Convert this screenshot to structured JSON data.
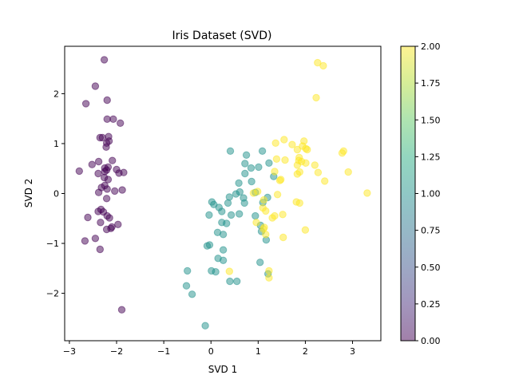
{
  "chart_data": {
    "type": "scatter",
    "title": "Iris Dataset (SVD)",
    "xlabel": "SVD 1",
    "ylabel": "SVD 2",
    "xlim": [
      -3.1,
      3.6
    ],
    "ylim": [
      -2.95,
      2.95
    ],
    "xticks": [
      -3,
      -2,
      -1,
      0,
      1,
      2,
      3
    ],
    "yticks": [
      -2,
      -1,
      0,
      1,
      2
    ],
    "grid": false,
    "marker_alpha": 0.5,
    "colorbar": {
      "colormap": "viridis",
      "range": [
        0,
        2
      ],
      "ticks": [
        "0.00",
        "0.25",
        "0.50",
        "0.75",
        "1.00",
        "1.25",
        "1.50",
        "1.75",
        "2.00"
      ]
    },
    "series": [
      {
        "class_value": 0,
        "color": "#440154",
        "points": [
          [
            -2.26,
            2.68
          ],
          [
            -2.45,
            2.15
          ],
          [
            -2.65,
            1.8
          ],
          [
            -2.2,
            1.87
          ],
          [
            -2.2,
            1.49
          ],
          [
            -2.07,
            1.49
          ],
          [
            -1.92,
            1.41
          ],
          [
            -2.35,
            1.12
          ],
          [
            -2.3,
            1.12
          ],
          [
            -2.17,
            1.14
          ],
          [
            -2.21,
            1.01
          ],
          [
            -2.16,
            1.05
          ],
          [
            -2.22,
            0.93
          ],
          [
            -2.52,
            0.58
          ],
          [
            -2.38,
            0.64
          ],
          [
            -2.09,
            0.66
          ],
          [
            -2.18,
            0.53
          ],
          [
            -2.25,
            0.51
          ],
          [
            -2.21,
            0.47
          ],
          [
            -2.25,
            0.44
          ],
          [
            -2.0,
            0.48
          ],
          [
            -1.95,
            0.41
          ],
          [
            -1.85,
            0.42
          ],
          [
            -2.79,
            0.45
          ],
          [
            -2.39,
            0.4
          ],
          [
            -2.26,
            0.32
          ],
          [
            -2.18,
            0.28
          ],
          [
            -2.25,
            0.16
          ],
          [
            -2.32,
            0.12
          ],
          [
            -2.2,
            0.09
          ],
          [
            -2.04,
            0.05
          ],
          [
            -1.88,
            0.07
          ],
          [
            -2.38,
            0.02
          ],
          [
            -2.21,
            -0.1
          ],
          [
            -2.33,
            -0.32
          ],
          [
            -2.39,
            -0.36
          ],
          [
            -2.28,
            -0.37
          ],
          [
            -2.61,
            -0.48
          ],
          [
            -2.2,
            -0.45
          ],
          [
            -2.15,
            -0.49
          ],
          [
            -2.34,
            -0.58
          ],
          [
            -2.1,
            -0.67
          ],
          [
            -1.97,
            -0.62
          ],
          [
            -2.21,
            -0.72
          ],
          [
            -2.12,
            -0.7
          ],
          [
            -2.45,
            -0.9
          ],
          [
            -2.67,
            -0.95
          ],
          [
            -2.35,
            -1.12
          ],
          [
            -1.89,
            -2.33
          ]
        ]
      },
      {
        "class_value": 1,
        "color": "#21918c",
        "points": [
          [
            0.41,
            0.85
          ],
          [
            0.75,
            0.77
          ],
          [
            1.09,
            0.85
          ],
          [
            0.72,
            0.6
          ],
          [
            0.85,
            0.51
          ],
          [
            1.01,
            0.53
          ],
          [
            1.23,
            0.61
          ],
          [
            0.72,
            0.4
          ],
          [
            1.33,
            0.34
          ],
          [
            0.59,
            0.21
          ],
          [
            0.61,
            0.03
          ],
          [
            0.86,
            0.24
          ],
          [
            0.94,
            0.02
          ],
          [
            0.53,
            -0.01
          ],
          [
            0.69,
            -0.09
          ],
          [
            0.39,
            -0.07
          ],
          [
            0.02,
            -0.17
          ],
          [
            0.06,
            -0.22
          ],
          [
            0.17,
            -0.28
          ],
          [
            0.36,
            -0.19
          ],
          [
            0.71,
            -0.19
          ],
          [
            1.1,
            -0.18
          ],
          [
            1.2,
            -0.08
          ],
          [
            0.23,
            -0.36
          ],
          [
            -0.04,
            -0.43
          ],
          [
            0.43,
            -0.43
          ],
          [
            0.6,
            -0.41
          ],
          [
            0.23,
            -0.58
          ],
          [
            0.33,
            -0.6
          ],
          [
            0.94,
            -0.45
          ],
          [
            0.14,
            -0.78
          ],
          [
            0.26,
            -0.82
          ],
          [
            1.05,
            -0.64
          ],
          [
            1.07,
            -0.76
          ],
          [
            1.17,
            -0.93
          ],
          [
            0.26,
            -1.13
          ],
          [
            -0.03,
            -1.03
          ],
          [
            -0.08,
            -1.05
          ],
          [
            0.15,
            -1.3
          ],
          [
            0.26,
            -1.34
          ],
          [
            1.04,
            -1.38
          ],
          [
            -0.5,
            -1.55
          ],
          [
            0.01,
            -1.55
          ],
          [
            0.1,
            -1.57
          ],
          [
            1.21,
            -1.61
          ],
          [
            0.4,
            -1.76
          ],
          [
            0.55,
            -1.76
          ],
          [
            -0.52,
            -1.85
          ],
          [
            -0.4,
            -2.02
          ],
          [
            -0.12,
            -2.65
          ]
        ]
      },
      {
        "class_value": 2,
        "color": "#fde725",
        "points": [
          [
            2.26,
            2.62
          ],
          [
            2.38,
            2.56
          ],
          [
            2.23,
            1.92
          ],
          [
            1.55,
            1.08
          ],
          [
            1.72,
            0.98
          ],
          [
            1.97,
            1.05
          ],
          [
            1.37,
            1.01
          ],
          [
            1.94,
            0.95
          ],
          [
            2.04,
            0.88
          ],
          [
            1.83,
            0.88
          ],
          [
            2.01,
            0.9
          ],
          [
            2.81,
            0.85
          ],
          [
            2.78,
            0.81
          ],
          [
            1.87,
            0.72
          ],
          [
            1.39,
            0.69
          ],
          [
            1.57,
            0.67
          ],
          [
            1.86,
            0.66
          ],
          [
            1.92,
            0.64
          ],
          [
            2.01,
            0.61
          ],
          [
            1.83,
            0.57
          ],
          [
            2.2,
            0.57
          ],
          [
            1.88,
            0.43
          ],
          [
            1.83,
            0.39
          ],
          [
            1.35,
            0.44
          ],
          [
            2.27,
            0.42
          ],
          [
            2.91,
            0.43
          ],
          [
            1.48,
            0.28
          ],
          [
            1.46,
            0.26
          ],
          [
            2.41,
            0.25
          ],
          [
            0.99,
            0.04
          ],
          [
            0.9,
            0.01
          ],
          [
            3.31,
            0.01
          ],
          [
            1.41,
            -0.02
          ],
          [
            1.12,
            -0.13
          ],
          [
            1.81,
            -0.17
          ],
          [
            1.88,
            -0.19
          ],
          [
            1.1,
            -0.29
          ],
          [
            1.16,
            -0.35
          ],
          [
            1.52,
            -0.42
          ],
          [
            1.3,
            -0.49
          ],
          [
            1.35,
            -0.45
          ],
          [
            0.96,
            -0.58
          ],
          [
            1.13,
            -0.68
          ],
          [
            1.11,
            -0.71
          ],
          [
            2.0,
            -0.73
          ],
          [
            1.16,
            -0.82
          ],
          [
            1.53,
            -0.88
          ],
          [
            0.39,
            -1.56
          ],
          [
            1.23,
            -1.55
          ],
          [
            1.23,
            -1.69
          ]
        ]
      }
    ]
  }
}
